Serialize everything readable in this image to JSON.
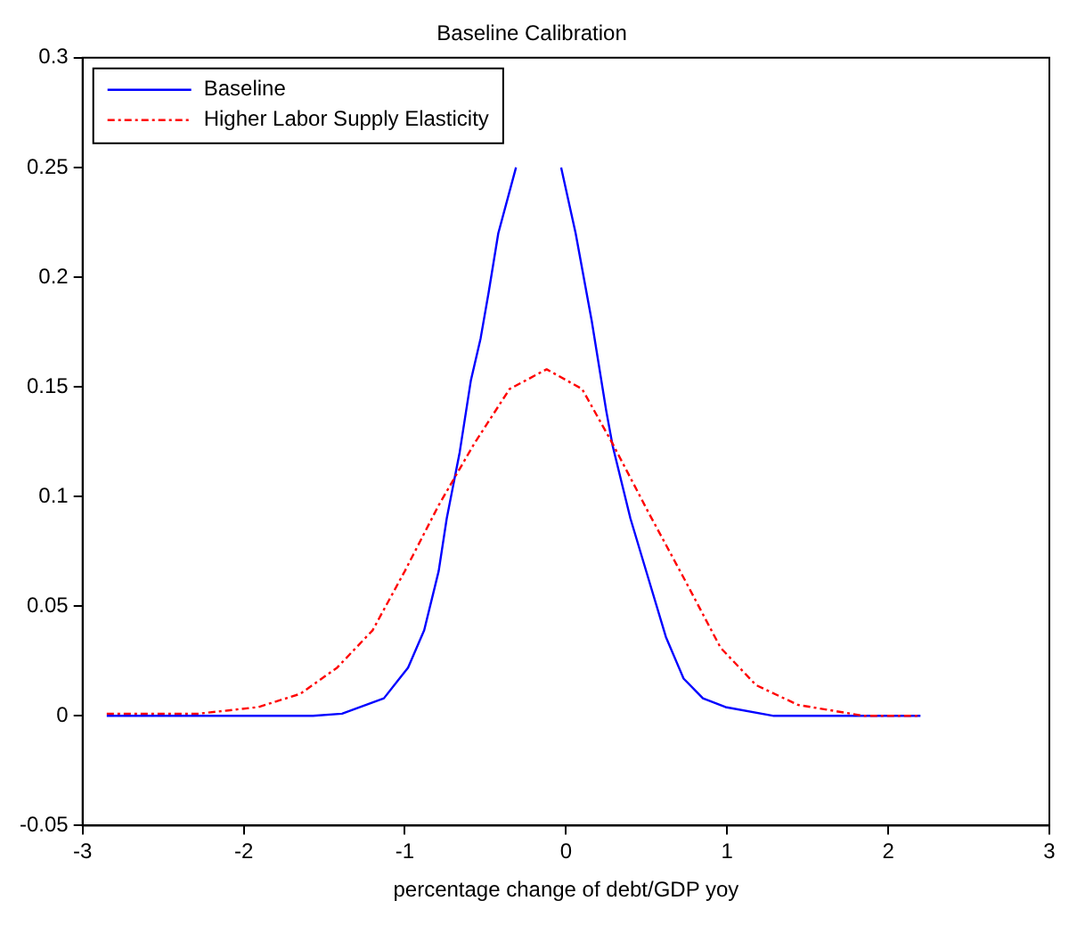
{
  "chart_data": {
    "type": "line",
    "title": "Baseline Calibration",
    "xlabel": "percentage change of debt/GDP yoy",
    "xlim": [
      -3,
      3
    ],
    "xticks": [
      -3,
      -2,
      -1,
      0,
      1,
      2,
      3
    ],
    "ylim": [
      -0.05,
      0.3
    ],
    "yticks": [
      -0.05,
      0,
      0.05,
      0.1,
      0.15,
      0.2,
      0.25,
      0.3
    ],
    "grid": false,
    "legend": "top left",
    "marker": "none",
    "series": [
      {
        "name": "Baseline",
        "color": "#0000ff",
        "line_style": "solid",
        "x": [
          -2.85,
          -1.57,
          -1.39,
          -1.13,
          -0.98,
          -0.88,
          -0.79,
          -0.74,
          -0.66,
          -0.59,
          -0.53,
          -0.48,
          -0.42,
          -0.31,
          -0.2,
          -0.1,
          -0.03,
          0.06,
          0.16,
          0.25,
          0.29,
          0.4,
          0.51,
          0.62,
          0.73,
          0.85,
          0.99,
          1.29,
          2.2
        ],
        "values": [
          0,
          0,
          0.001,
          0.008,
          0.022,
          0.039,
          0.066,
          0.09,
          0.12,
          0.153,
          0.172,
          0.193,
          0.22,
          0.25,
          null,
          null,
          0.25,
          0.22,
          0.18,
          0.139,
          0.123,
          0.09,
          0.063,
          0.036,
          0.017,
          0.008,
          0.004,
          0,
          0
        ]
      },
      {
        "name": "Higher Labor Supply Elasticity",
        "color": "#ff0000",
        "line_style": "dashed",
        "x": [
          -2.85,
          -2.28,
          -1.91,
          -1.65,
          -1.42,
          -1.2,
          -1.0,
          -0.79,
          -0.57,
          -0.35,
          -0.12,
          0.1,
          0.29,
          0.51,
          0.73,
          0.96,
          1.18,
          1.44,
          1.85,
          2.2
        ],
        "values": [
          0.001,
          0.001,
          0.004,
          0.01,
          0.022,
          0.039,
          0.066,
          0.096,
          0.124,
          0.149,
          0.158,
          0.149,
          0.124,
          0.093,
          0.063,
          0.031,
          0.014,
          0.005,
          0,
          0
        ]
      }
    ]
  }
}
